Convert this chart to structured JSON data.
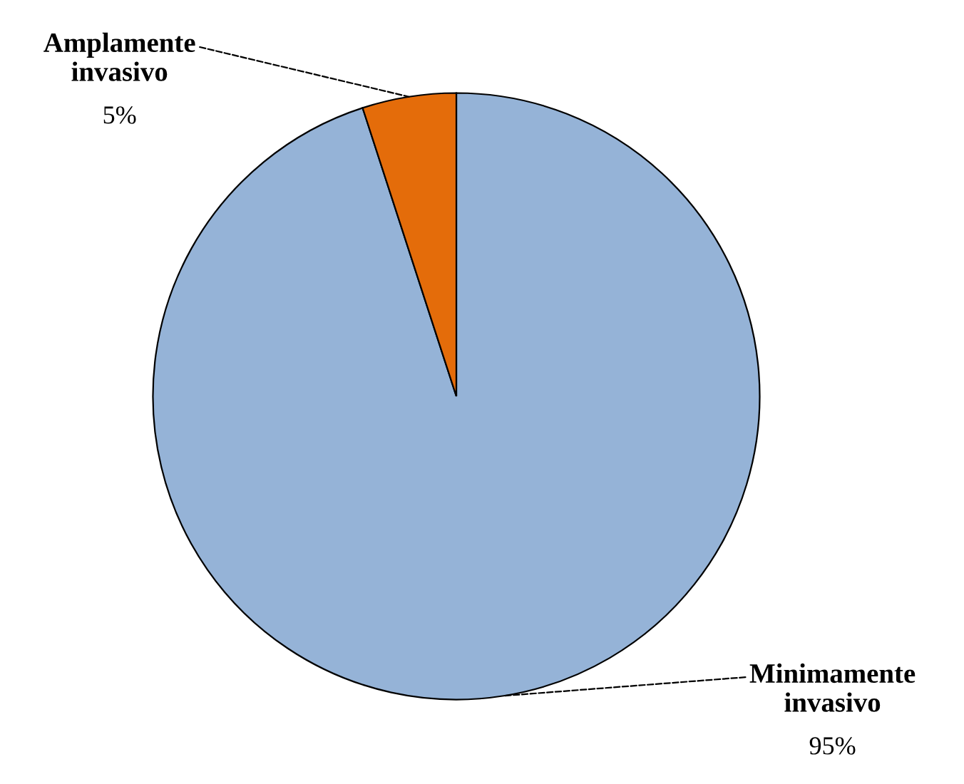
{
  "chart_data": {
    "type": "pie",
    "categories": [
      "Minimamente invasivo",
      "Amplamente invasivo"
    ],
    "values": [
      95,
      5
    ],
    "colors": [
      "#95b3d7",
      "#e46c0a"
    ],
    "value_labels": [
      "95%",
      "5%"
    ]
  }
}
